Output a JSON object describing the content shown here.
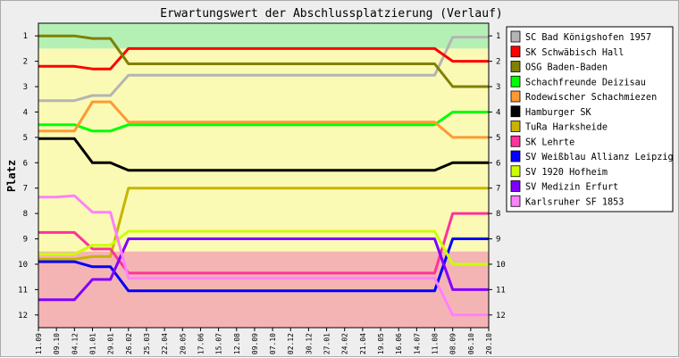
{
  "chart_data": {
    "type": "line",
    "title": "Erwartungswert der Abschlussplatzierung (Verlauf)",
    "ylabel": "Platz",
    "xlabel": "",
    "ylim": [
      12.5,
      0.5
    ],
    "y_ticks": [
      1,
      2,
      3,
      4,
      5,
      6,
      7,
      8,
      9,
      10,
      11,
      12
    ],
    "legend_position": "right",
    "grid": false,
    "zones": [
      {
        "from": 0.5,
        "to": 1.5,
        "color": "#b4f0b4"
      },
      {
        "from": 1.5,
        "to": 9.5,
        "color": "#fafab4"
      },
      {
        "from": 9.5,
        "to": 12.5,
        "color": "#f5b4b4"
      }
    ],
    "x": [
      "11.09",
      "09.10",
      "04.12",
      "01.01",
      "29.01",
      "26.02",
      "25.03",
      "22.04",
      "20.05",
      "17.06",
      "15.07",
      "12.08",
      "09.09",
      "07.10",
      "02.12",
      "30.12",
      "27.01",
      "24.02",
      "21.04",
      "19.05",
      "16.06",
      "14.07",
      "11.08",
      "08.09",
      "06.10",
      "20.10"
    ],
    "series": [
      {
        "name": "SC Bad Königshofen 1957",
        "color": "#b4b4b4",
        "values": [
          3.55,
          3.55,
          3.55,
          3.35,
          3.35,
          2.55,
          2.55,
          2.55,
          2.55,
          2.55,
          2.55,
          2.55,
          2.55,
          2.55,
          2.55,
          2.55,
          2.55,
          2.55,
          2.55,
          2.55,
          2.55,
          2.55,
          2.55,
          1.05,
          1.05,
          1.05
        ]
      },
      {
        "name": "SK Schwäbisch Hall",
        "color": "#ff0000",
        "values": [
          2.2,
          2.2,
          2.2,
          2.3,
          2.3,
          1.5,
          1.5,
          1.5,
          1.5,
          1.5,
          1.5,
          1.5,
          1.5,
          1.5,
          1.5,
          1.5,
          1.5,
          1.5,
          1.5,
          1.5,
          1.5,
          1.5,
          1.5,
          2.0,
          2.0,
          2.0
        ]
      },
      {
        "name": "OSG Baden-Baden",
        "color": "#808000",
        "values": [
          1.0,
          1.0,
          1.0,
          1.1,
          1.1,
          2.1,
          2.1,
          2.1,
          2.1,
          2.1,
          2.1,
          2.1,
          2.1,
          2.1,
          2.1,
          2.1,
          2.1,
          2.1,
          2.1,
          2.1,
          2.1,
          2.1,
          2.1,
          3.0,
          3.0,
          3.0
        ]
      },
      {
        "name": "Schachfreunde Deizisau",
        "color": "#00ff00",
        "values": [
          4.5,
          4.5,
          4.5,
          4.75,
          4.75,
          4.5,
          4.5,
          4.5,
          4.5,
          4.5,
          4.5,
          4.5,
          4.5,
          4.5,
          4.5,
          4.5,
          4.5,
          4.5,
          4.5,
          4.5,
          4.5,
          4.5,
          4.5,
          4.0,
          4.0,
          4.0
        ]
      },
      {
        "name": "Rodewischer Schachmiezen",
        "color": "#ff9933",
        "values": [
          4.75,
          4.75,
          4.75,
          3.6,
          3.6,
          4.4,
          4.4,
          4.4,
          4.4,
          4.4,
          4.4,
          4.4,
          4.4,
          4.4,
          4.4,
          4.4,
          4.4,
          4.4,
          4.4,
          4.4,
          4.4,
          4.4,
          4.4,
          5.0,
          5.0,
          5.0
        ]
      },
      {
        "name": "Hamburger SK",
        "color": "#000000",
        "values": [
          5.05,
          5.05,
          5.05,
          6.0,
          6.0,
          6.3,
          6.3,
          6.3,
          6.3,
          6.3,
          6.3,
          6.3,
          6.3,
          6.3,
          6.3,
          6.3,
          6.3,
          6.3,
          6.3,
          6.3,
          6.3,
          6.3,
          6.3,
          6.0,
          6.0,
          6.0
        ]
      },
      {
        "name": "TuRa Harksheide",
        "color": "#c8b400",
        "values": [
          9.8,
          9.8,
          9.8,
          9.7,
          9.7,
          7.0,
          7.0,
          7.0,
          7.0,
          7.0,
          7.0,
          7.0,
          7.0,
          7.0,
          7.0,
          7.0,
          7.0,
          7.0,
          7.0,
          7.0,
          7.0,
          7.0,
          7.0,
          7.0,
          7.0,
          7.0
        ]
      },
      {
        "name": "SK Lehrte",
        "color": "#ff3399",
        "values": [
          8.75,
          8.75,
          8.75,
          9.4,
          9.4,
          10.35,
          10.35,
          10.35,
          10.35,
          10.35,
          10.35,
          10.35,
          10.35,
          10.35,
          10.35,
          10.35,
          10.35,
          10.35,
          10.35,
          10.35,
          10.35,
          10.35,
          10.35,
          8.0,
          8.0,
          8.0
        ]
      },
      {
        "name": "SV Weißblau Allianz Leipzig",
        "color": "#0000ff",
        "values": [
          9.9,
          9.9,
          9.9,
          10.1,
          10.1,
          11.05,
          11.05,
          11.05,
          11.05,
          11.05,
          11.05,
          11.05,
          11.05,
          11.05,
          11.05,
          11.05,
          11.05,
          11.05,
          11.05,
          11.05,
          11.05,
          11.05,
          11.05,
          9.0,
          9.0,
          9.0
        ]
      },
      {
        "name": "SV 1920 Hofheim",
        "color": "#ccff00",
        "values": [
          9.6,
          9.6,
          9.6,
          9.25,
          9.25,
          8.7,
          8.7,
          8.7,
          8.7,
          8.7,
          8.7,
          8.7,
          8.7,
          8.7,
          8.7,
          8.7,
          8.7,
          8.7,
          8.7,
          8.7,
          8.7,
          8.7,
          8.7,
          10.0,
          10.0,
          10.0
        ]
      },
      {
        "name": "SV Medizin Erfurt",
        "color": "#8000ff",
        "values": [
          11.4,
          11.4,
          11.4,
          10.6,
          10.6,
          9.0,
          9.0,
          9.0,
          9.0,
          9.0,
          9.0,
          9.0,
          9.0,
          9.0,
          9.0,
          9.0,
          9.0,
          9.0,
          9.0,
          9.0,
          9.0,
          9.0,
          9.0,
          11.0,
          11.0,
          11.0
        ]
      },
      {
        "name": "Karlsruher SF 1853",
        "color": "#ff80ff",
        "values": [
          7.35,
          7.35,
          7.3,
          7.95,
          7.95,
          10.55,
          10.55,
          10.55,
          10.55,
          10.55,
          10.55,
          10.55,
          10.55,
          10.55,
          10.55,
          10.55,
          10.55,
          10.55,
          10.55,
          10.55,
          10.55,
          10.55,
          10.55,
          12.0,
          12.0,
          12.0
        ]
      }
    ]
  }
}
